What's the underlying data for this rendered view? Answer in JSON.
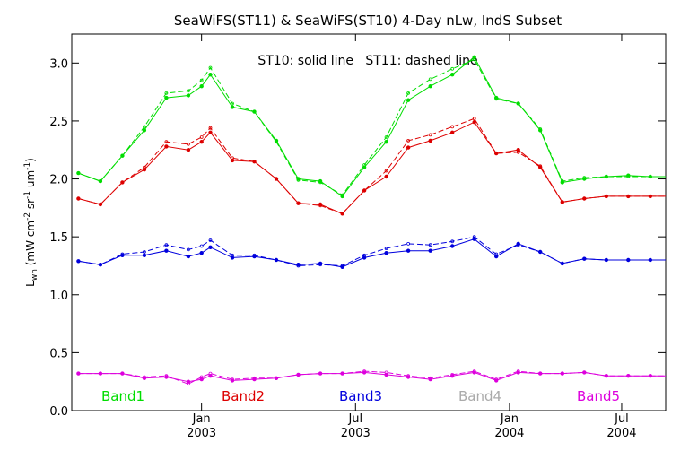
{
  "chart_data": {
    "type": "line",
    "title": "SeaWiFS(ST11) & SeaWiFS(ST10) 4-Day nLw, IndS Subset",
    "annotation": "ST10: solid line   ST11: dashed line",
    "ylabel": "L",
    "ylabel_sub": "wn",
    "ylabel_unit": " (mW cm",
    "ylabel_unit_sup1": "-2",
    "ylabel_unit_mid": " sr",
    "ylabel_unit_sup2": "-1",
    "ylabel_unit_end": " um",
    "ylabel_unit_sup3": "-1",
    "ylabel_unit_close": ")",
    "ylim": [
      0.0,
      3.25
    ],
    "yticks": [
      {
        "value": 0.0,
        "label": "0.0"
      },
      {
        "value": 0.5,
        "label": "0.5"
      },
      {
        "value": 1.0,
        "label": "1.0"
      },
      {
        "value": 1.5,
        "label": "1.5"
      },
      {
        "value": 2.0,
        "label": "2.0"
      },
      {
        "value": 2.5,
        "label": "2.5"
      },
      {
        "value": 3.0,
        "label": "3.0"
      }
    ],
    "xlim": [
      0,
      27
    ],
    "xticks": [
      {
        "value": 5.9,
        "label1": "Jan",
        "label2": "2003"
      },
      {
        "value": 12.9,
        "label1": "Jul",
        "label2": "2003"
      },
      {
        "value": 19.9,
        "label1": "Jan",
        "label2": "2004"
      },
      {
        "value": 25.0,
        "label1": "Jul",
        "label2": "2004"
      }
    ],
    "x": [
      0.3,
      1.3,
      2.3,
      3.3,
      4.3,
      5.3,
      5.9,
      6.3,
      7.3,
      8.3,
      9.3,
      10.3,
      11.3,
      12.3,
      13.3,
      14.3,
      15.3,
      16.3,
      17.3,
      18.3,
      19.3,
      20.3,
      21.3,
      22.3,
      23.3,
      24.3,
      25.3,
      26.3,
      27.0
    ],
    "series": [
      {
        "name": "Band1",
        "color": "#00dd00",
        "st10": [
          2.05,
          1.98,
          2.2,
          2.42,
          2.7,
          2.72,
          2.8,
          2.9,
          2.62,
          2.58,
          2.33,
          2.0,
          1.98,
          1.85,
          2.1,
          2.32,
          2.68,
          2.8,
          2.9,
          3.05,
          2.7,
          2.65,
          2.42,
          1.97,
          2.0,
          2.02,
          2.03,
          2.02,
          2.02
        ],
        "st11": [
          2.05,
          1.98,
          2.2,
          2.45,
          2.74,
          2.76,
          2.85,
          2.96,
          2.65,
          2.58,
          2.32,
          1.99,
          1.97,
          1.86,
          2.12,
          2.36,
          2.74,
          2.86,
          2.95,
          3.03,
          2.69,
          2.65,
          2.43,
          1.98,
          2.01,
          2.02,
          2.02,
          2.02,
          2.02
        ]
      },
      {
        "name": "Band2",
        "color": "#dd0000",
        "st10": [
          1.83,
          1.78,
          1.97,
          2.08,
          2.28,
          2.25,
          2.32,
          2.4,
          2.16,
          2.15,
          2.0,
          1.79,
          1.78,
          1.7,
          1.9,
          2.02,
          2.27,
          2.33,
          2.4,
          2.49,
          2.22,
          2.25,
          2.1,
          1.8,
          1.83,
          1.85,
          1.85,
          1.85,
          1.85
        ],
        "st11": [
          1.83,
          1.78,
          1.97,
          2.1,
          2.32,
          2.3,
          2.36,
          2.44,
          2.18,
          2.15,
          2.0,
          1.79,
          1.77,
          1.7,
          1.9,
          2.07,
          2.33,
          2.38,
          2.45,
          2.52,
          2.22,
          2.23,
          2.11,
          1.8,
          1.83,
          1.85,
          1.85,
          1.85,
          1.85
        ]
      },
      {
        "name": "Band3",
        "color": "#0000dd",
        "st10": [
          1.29,
          1.26,
          1.34,
          1.34,
          1.38,
          1.33,
          1.36,
          1.41,
          1.32,
          1.33,
          1.3,
          1.26,
          1.27,
          1.24,
          1.32,
          1.36,
          1.38,
          1.38,
          1.42,
          1.48,
          1.33,
          1.44,
          1.37,
          1.27,
          1.31,
          1.3,
          1.3,
          1.3,
          1.3
        ],
        "st11": [
          1.29,
          1.26,
          1.35,
          1.37,
          1.43,
          1.39,
          1.42,
          1.47,
          1.34,
          1.34,
          1.3,
          1.25,
          1.26,
          1.25,
          1.34,
          1.4,
          1.44,
          1.43,
          1.46,
          1.5,
          1.35,
          1.43,
          1.37,
          1.27,
          1.31,
          1.3,
          1.3,
          1.3,
          1.3
        ]
      },
      {
        "name": "Band4",
        "color": "#aaaaaa",
        "st10": [],
        "st11": []
      },
      {
        "name": "Band5",
        "color": "#dd00dd",
        "st10": [
          0.32,
          0.32,
          0.32,
          0.28,
          0.29,
          0.25,
          0.27,
          0.3,
          0.26,
          0.27,
          0.28,
          0.31,
          0.32,
          0.32,
          0.33,
          0.31,
          0.29,
          0.27,
          0.3,
          0.33,
          0.26,
          0.33,
          0.32,
          0.32,
          0.33,
          0.3,
          0.3,
          0.3,
          0.3
        ],
        "st11": [
          0.32,
          0.32,
          0.32,
          0.29,
          0.3,
          0.23,
          0.29,
          0.32,
          0.27,
          0.28,
          0.28,
          0.31,
          0.32,
          0.32,
          0.34,
          0.33,
          0.3,
          0.28,
          0.31,
          0.34,
          0.27,
          0.34,
          0.32,
          0.32,
          0.33,
          0.3,
          0.3,
          0.3,
          0.3
        ]
      }
    ],
    "legend_placement": "bottom"
  }
}
